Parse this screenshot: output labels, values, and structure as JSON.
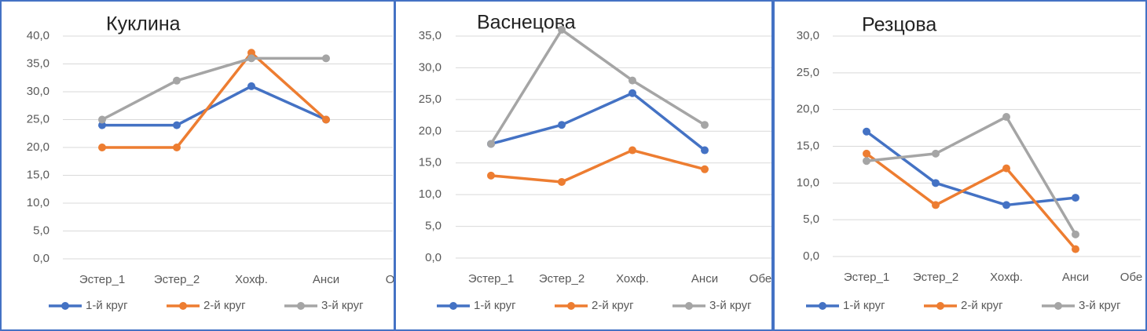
{
  "chart_data": [
    {
      "type": "line",
      "title": "Куклина",
      "categories": [
        "Эстер_1",
        "Эстер_2",
        "Хохф.",
        "Анси",
        "Обе"
      ],
      "series": [
        {
          "name": "1-й круг",
          "color": "#4472c4",
          "values": [
            24,
            24,
            31,
            25,
            null
          ]
        },
        {
          "name": "2-й круг",
          "color": "#ed7d31",
          "values": [
            20,
            20,
            37,
            25,
            null
          ]
        },
        {
          "name": "3-й круг",
          "color": "#a5a5a5",
          "values": [
            25,
            32,
            36,
            36,
            null
          ]
        }
      ],
      "ylim": [
        0,
        40
      ],
      "yticks": [
        {
          "value": 0,
          "label": "0,0"
        },
        {
          "value": 5,
          "label": "5,0"
        },
        {
          "value": 10,
          "label": "10,0"
        },
        {
          "value": 15,
          "label": "15,0"
        },
        {
          "value": 20,
          "label": "20,0"
        },
        {
          "value": 25,
          "label": "25,0"
        },
        {
          "value": 30,
          "label": "30,0"
        },
        {
          "value": 35,
          "label": "35,0"
        },
        {
          "value": 40,
          "label": "40,0"
        }
      ],
      "grid": true,
      "legend": "bottom"
    },
    {
      "type": "line",
      "title": "Васнецова",
      "categories": [
        "Эстер_1",
        "Эстер_2",
        "Хохф.",
        "Анси",
        "Обе"
      ],
      "series": [
        {
          "name": "1-й круг",
          "color": "#4472c4",
          "values": [
            18,
            21,
            26,
            17,
            null
          ]
        },
        {
          "name": "2-й круг",
          "color": "#ed7d31",
          "values": [
            13,
            12,
            17,
            14,
            null
          ]
        },
        {
          "name": "3-й круг",
          "color": "#a5a5a5",
          "values": [
            18,
            36,
            28,
            21,
            null
          ]
        }
      ],
      "ylim": [
        0,
        35
      ],
      "yticks": [
        {
          "value": 0,
          "label": "0,0"
        },
        {
          "value": 5,
          "label": "5,0"
        },
        {
          "value": 10,
          "label": "10,0"
        },
        {
          "value": 15,
          "label": "15,0"
        },
        {
          "value": 20,
          "label": "20,0"
        },
        {
          "value": 25,
          "label": "25,0"
        },
        {
          "value": 30,
          "label": "30,0"
        },
        {
          "value": 35,
          "label": "35,0"
        }
      ],
      "grid": true,
      "legend": "bottom"
    },
    {
      "type": "line",
      "title": "Резцова",
      "categories": [
        "Эстер_1",
        "Эстер_2",
        "Хохф.",
        "Анси",
        "Обе"
      ],
      "series": [
        {
          "name": "1-й круг",
          "color": "#4472c4",
          "values": [
            17,
            10,
            7,
            8,
            null
          ]
        },
        {
          "name": "2-й круг",
          "color": "#ed7d31",
          "values": [
            14,
            7,
            12,
            1,
            null
          ]
        },
        {
          "name": "3-й круг",
          "color": "#a5a5a5",
          "values": [
            13,
            14,
            19,
            3,
            null
          ]
        }
      ],
      "ylim": [
        0,
        30
      ],
      "yticks": [
        {
          "value": 0,
          "label": "0,0"
        },
        {
          "value": 5,
          "label": "5,0"
        },
        {
          "value": 10,
          "label": "10,0"
        },
        {
          "value": 15,
          "label": "15,0"
        },
        {
          "value": 20,
          "label": "20,0"
        },
        {
          "value": 25,
          "label": "25,0"
        },
        {
          "value": 30,
          "label": "30,0"
        }
      ],
      "grid": true,
      "legend": "bottom"
    }
  ]
}
